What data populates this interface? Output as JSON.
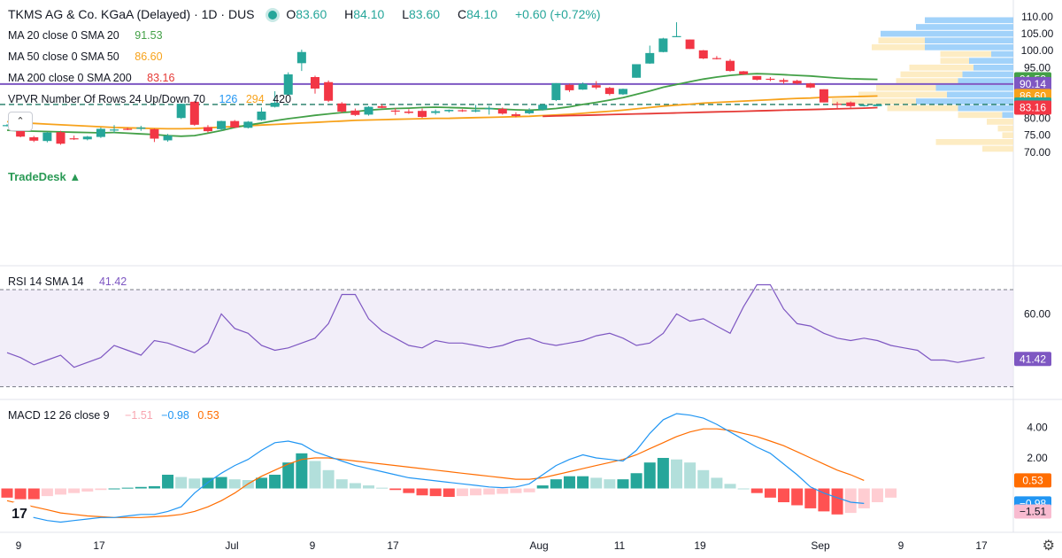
{
  "header": {
    "title": "TKMS AG & Co. KGaA (Delayed) · 1D · DUS",
    "o_label": "O",
    "o": "83.60",
    "h_label": "H",
    "h": "84.10",
    "l_label": "L",
    "l": "83.60",
    "c_label": "C",
    "c": "84.10",
    "change": "+0.60 (+0.72%)"
  },
  "legends": {
    "ma20": {
      "label": "MA 20 close 0 SMA 20",
      "value": "91.53",
      "color": "#43a047"
    },
    "ma50": {
      "label": "MA 50 close 0 SMA 50",
      "value": "86.60",
      "color": "#f7a21b"
    },
    "ma200": {
      "label": "MA 200 close 0 SMA 200",
      "value": "83.16",
      "color": "#e53935"
    },
    "vpvr": {
      "label": "VPVR Number Of Rows 24 Up/Down 70",
      "v1": "126",
      "v2": "294",
      "v3": "420"
    },
    "rsi": {
      "label": "RSI 14 SMA 14",
      "value": "41.42",
      "color": "#7e57c2"
    },
    "macd": {
      "label": "MACD 12 26 close 9",
      "v1": "−1.51",
      "v2": "−0.98",
      "v3": "0.53"
    }
  },
  "watermark": "TradeDesk",
  "tv_logo": "17",
  "icons": {
    "collapse": "chevron-up-icon",
    "settings": "gear-icon"
  },
  "colors": {
    "up": "#26a69a",
    "down": "#f23645",
    "ma20": "#43a047",
    "ma50": "#f7a21b",
    "ma200": "#e53935",
    "hline": "#7e57c2",
    "rsi": "#7e57c2",
    "macd": "#2196f3",
    "signal": "#ff6d00"
  },
  "chart_data": [
    {
      "type": "candlestick",
      "title": "TKMS AG & Co. KGaA (Delayed) · 1D · DUS",
      "ylim": [
        67,
        111
      ],
      "yticks": [
        70,
        75,
        80,
        85,
        90,
        95,
        100,
        105,
        110
      ],
      "xticks": [
        "9",
        "17",
        "Jul",
        "9",
        "17",
        "Aug",
        "11",
        "19",
        "Sep",
        "9",
        "17"
      ],
      "candles": [
        {
          "o": 78.0,
          "h": 78.3,
          "l": 77.6,
          "c": 78.0
        },
        {
          "o": 76.7,
          "h": 77.2,
          "l": 74.4,
          "c": 74.6
        },
        {
          "o": 74.4,
          "h": 74.8,
          "l": 73.0,
          "c": 73.4
        },
        {
          "o": 73.3,
          "h": 76.0,
          "l": 72.9,
          "c": 75.8
        },
        {
          "o": 75.9,
          "h": 76.3,
          "l": 72.2,
          "c": 72.5
        },
        {
          "o": 74.1,
          "h": 74.9,
          "l": 73.6,
          "c": 74.0
        },
        {
          "o": 73.8,
          "h": 74.8,
          "l": 73.5,
          "c": 74.6
        },
        {
          "o": 74.5,
          "h": 77.3,
          "l": 74.2,
          "c": 76.9
        },
        {
          "o": 76.5,
          "h": 78.0,
          "l": 75.7,
          "c": 76.7
        },
        {
          "o": 76.9,
          "h": 77.3,
          "l": 76.5,
          "c": 76.8
        },
        {
          "o": 76.9,
          "h": 77.8,
          "l": 76.3,
          "c": 77.3
        },
        {
          "o": 76.8,
          "h": 77.0,
          "l": 73.0,
          "c": 74.0
        },
        {
          "o": 73.5,
          "h": 75.4,
          "l": 73.1,
          "c": 74.9
        },
        {
          "o": 80.1,
          "h": 84.3,
          "l": 79.8,
          "c": 84.3
        },
        {
          "o": 84.9,
          "h": 85.1,
          "l": 77.8,
          "c": 78.1
        },
        {
          "o": 77.4,
          "h": 78.0,
          "l": 75.8,
          "c": 76.2
        },
        {
          "o": 76.8,
          "h": 79.3,
          "l": 76.3,
          "c": 79.2
        },
        {
          "o": 79.2,
          "h": 79.5,
          "l": 77.1,
          "c": 77.3
        },
        {
          "o": 77.2,
          "h": 79.2,
          "l": 77.0,
          "c": 79.0
        },
        {
          "o": 79.5,
          "h": 83.2,
          "l": 79.3,
          "c": 82.0
        },
        {
          "o": 83.4,
          "h": 88.0,
          "l": 83.2,
          "c": 84.6
        },
        {
          "o": 87.0,
          "h": 93.6,
          "l": 86.8,
          "c": 93.0
        },
        {
          "o": 96.3,
          "h": 100.3,
          "l": 94.0,
          "c": 99.6
        },
        {
          "o": 92.2,
          "h": 92.6,
          "l": 87.3,
          "c": 88.8
        },
        {
          "o": 90.7,
          "h": 91.2,
          "l": 84.8,
          "c": 85.2
        },
        {
          "o": 84.4,
          "h": 84.8,
          "l": 81.6,
          "c": 82.0
        },
        {
          "o": 82.3,
          "h": 82.9,
          "l": 80.7,
          "c": 81.0
        },
        {
          "o": 81.1,
          "h": 83.6,
          "l": 80.8,
          "c": 83.4
        },
        {
          "o": 83.6,
          "h": 84.2,
          "l": 83.0,
          "c": 83.1
        },
        {
          "o": 82.3,
          "h": 83.0,
          "l": 81.0,
          "c": 82.0
        },
        {
          "o": 82.0,
          "h": 82.7,
          "l": 81.3,
          "c": 81.6
        },
        {
          "o": 82.2,
          "h": 82.9,
          "l": 80.1,
          "c": 80.4
        },
        {
          "o": 81.6,
          "h": 82.6,
          "l": 81.1,
          "c": 82.1
        },
        {
          "o": 82.1,
          "h": 82.6,
          "l": 81.7,
          "c": 82.5
        },
        {
          "o": 82.4,
          "h": 82.7,
          "l": 81.9,
          "c": 82.1
        },
        {
          "o": 82.0,
          "h": 84.0,
          "l": 81.8,
          "c": 82.4
        },
        {
          "o": 82.8,
          "h": 83.7,
          "l": 81.1,
          "c": 83.0
        },
        {
          "o": 82.8,
          "h": 83.2,
          "l": 81.1,
          "c": 81.4
        },
        {
          "o": 81.2,
          "h": 81.8,
          "l": 80.3,
          "c": 80.7
        },
        {
          "o": 81.5,
          "h": 83.0,
          "l": 81.2,
          "c": 82.3
        },
        {
          "o": 82.6,
          "h": 84.3,
          "l": 82.3,
          "c": 84.0
        },
        {
          "o": 85.4,
          "h": 90.4,
          "l": 85.1,
          "c": 90.4
        },
        {
          "o": 89.9,
          "h": 90.2,
          "l": 87.8,
          "c": 88.3
        },
        {
          "o": 88.5,
          "h": 90.6,
          "l": 88.4,
          "c": 90.2
        },
        {
          "o": 89.8,
          "h": 91.0,
          "l": 88.6,
          "c": 89.1
        },
        {
          "o": 89.0,
          "h": 89.3,
          "l": 86.8,
          "c": 87.2
        },
        {
          "o": 87.1,
          "h": 88.8,
          "l": 86.9,
          "c": 88.7
        },
        {
          "o": 92.0,
          "h": 96.0,
          "l": 92.0,
          "c": 96.0
        },
        {
          "o": 96.2,
          "h": 101.5,
          "l": 96.1,
          "c": 99.3
        },
        {
          "o": 99.6,
          "h": 103.8,
          "l": 99.5,
          "c": 103.6
        },
        {
          "o": 104.0,
          "h": 108.4,
          "l": 104.0,
          "c": 104.3
        },
        {
          "o": 103.3,
          "h": 103.3,
          "l": 100.5,
          "c": 100.5
        },
        {
          "o": 100.1,
          "h": 100.2,
          "l": 97.5,
          "c": 97.7
        },
        {
          "o": 97.8,
          "h": 98.4,
          "l": 97.4,
          "c": 97.6
        },
        {
          "o": 97.0,
          "h": 97.5,
          "l": 93.8,
          "c": 94.0
        },
        {
          "o": 93.9,
          "h": 94.0,
          "l": 92.8,
          "c": 93.0
        },
        {
          "o": 92.5,
          "h": 92.5,
          "l": 91.2,
          "c": 91.4
        },
        {
          "o": 91.7,
          "h": 92.2,
          "l": 91.0,
          "c": 91.4
        },
        {
          "o": 91.3,
          "h": 91.8,
          "l": 90.2,
          "c": 90.8
        },
        {
          "o": 91.1,
          "h": 91.4,
          "l": 90.0,
          "c": 90.3
        },
        {
          "o": 90.3,
          "h": 90.5,
          "l": 88.9,
          "c": 89.1
        },
        {
          "o": 88.6,
          "h": 88.6,
          "l": 84.7,
          "c": 84.7
        },
        {
          "o": 84.3,
          "h": 84.9,
          "l": 82.8,
          "c": 84.1
        },
        {
          "o": 84.7,
          "h": 85.0,
          "l": 83.1,
          "c": 83.6
        },
        {
          "o": 83.9,
          "h": 84.1,
          "l": 83.5,
          "c": 83.9
        },
        {
          "o": 83.6,
          "h": 84.1,
          "l": 83.6,
          "c": 84.1
        }
      ],
      "sma20": [
        76.5,
        76.3,
        76.2,
        76.1,
        76.0,
        75.9,
        75.8,
        75.7,
        75.8,
        75.6,
        75.4,
        75.2,
        74.9,
        74.7,
        74.9,
        75.6,
        76.4,
        77.3,
        78.0,
        78.6,
        79.3,
        79.9,
        80.4,
        80.9,
        81.3,
        81.7,
        82.0,
        82.4,
        82.7,
        82.9,
        83.0,
        83.2,
        83.3,
        83.2,
        83.1,
        82.9,
        82.9,
        82.7,
        82.5,
        82.4,
        82.6,
        82.9,
        83.4,
        84.1,
        84.7,
        85.4,
        86.1,
        87.1,
        88.1,
        89.2,
        90.0,
        90.8,
        91.6,
        92.2,
        92.7,
        93.0,
        93.2,
        93.1,
        92.9,
        92.7,
        92.5,
        92.2,
        91.9,
        91.7,
        91.6,
        91.53
      ],
      "sma50": [
        79.0,
        78.7,
        78.5,
        78.3,
        78.1,
        77.9,
        77.7,
        77.5,
        77.3,
        77.2,
        77.1,
        77.0,
        76.9,
        76.9,
        77.0,
        77.2,
        77.4,
        77.6,
        77.8,
        78.0,
        78.2,
        78.4,
        78.6,
        78.8,
        79.0,
        79.2,
        79.4,
        79.5,
        79.6,
        79.7,
        79.8,
        79.9,
        80.0,
        80.0,
        80.1,
        80.2,
        80.3,
        80.4,
        80.5,
        80.6,
        80.8,
        81.0,
        81.2,
        81.5,
        81.8,
        82.1,
        82.4,
        82.8,
        83.2,
        83.6,
        83.9,
        84.2,
        84.5,
        84.7,
        84.9,
        85.1,
        85.3,
        85.5,
        85.7,
        85.9,
        86.0,
        86.2,
        86.3,
        86.4,
        86.5,
        86.6
      ],
      "sma200": {
        "from_index": 40,
        "values": [
          80.6,
          80.7,
          80.8,
          80.9,
          81.0,
          81.1,
          81.2,
          81.3,
          81.4,
          81.5,
          81.6,
          81.7,
          81.8,
          81.9,
          82.0,
          82.1,
          82.2,
          82.3,
          82.4,
          82.5,
          82.6,
          82.7,
          82.8,
          82.9,
          83.0,
          83.16
        ]
      },
      "hline": 90.14,
      "last_price_line": 84.1,
      "price_labels": [
        {
          "value": 91.53,
          "text": "91.53",
          "color": "#43a047"
        },
        {
          "value": 90.14,
          "text": "90.14",
          "color": "#7e57c2"
        },
        {
          "value": 86.6,
          "text": "86.60",
          "color": "#f7a21b"
        },
        {
          "value": 84.1,
          "text": "84.10",
          "color": "#26a69a"
        },
        {
          "value": 83.63,
          "text": "83.63",
          "color": "#26a69a"
        },
        {
          "value": 83.16,
          "text": "83.16",
          "color": "#f23645"
        }
      ],
      "volume_profile": [
        {
          "price": 70,
          "up": 0,
          "total": 0.14
        },
        {
          "price": 72,
          "up": 0,
          "total": 0.35
        },
        {
          "price": 74,
          "up": 0,
          "total": 0.05
        },
        {
          "price": 76,
          "up": 0,
          "total": 0.07
        },
        {
          "price": 78,
          "up": 0,
          "total": 0.12
        },
        {
          "price": 80,
          "up": 0.05,
          "total": 0.25
        },
        {
          "price": 82,
          "up": 0.25,
          "total": 0.57
        },
        {
          "price": 84,
          "up": 0.44,
          "total": 0.82
        },
        {
          "price": 86,
          "up": 0.3,
          "total": 0.7
        },
        {
          "price": 88,
          "up": 0.35,
          "total": 0.62
        },
        {
          "price": 90,
          "up": 0.25,
          "total": 0.53
        },
        {
          "price": 92,
          "up": 0.23,
          "total": 0.51
        },
        {
          "price": 94,
          "up": 0.18,
          "total": 0.47
        },
        {
          "price": 96,
          "up": 0.2,
          "total": 0.33
        },
        {
          "price": 98,
          "up": 0.1,
          "total": 0.33
        },
        {
          "price": 100,
          "up": 0.4,
          "total": 0.64
        },
        {
          "price": 102,
          "up": 0.4,
          "total": 0.61
        },
        {
          "price": 104,
          "up": 0.6,
          "total": 0.6
        },
        {
          "price": 106,
          "up": 0.44,
          "total": 0.44
        },
        {
          "price": 108,
          "up": 0.4,
          "total": 0.4
        }
      ]
    },
    {
      "type": "line",
      "title": "RSI 14 SMA 14",
      "ylim": [
        25,
        75
      ],
      "yticks": [
        60
      ],
      "band": [
        30,
        70
      ],
      "values": [
        44,
        42,
        39,
        41,
        43,
        38,
        40,
        42,
        47,
        45,
        43,
        49,
        48,
        46,
        44,
        48,
        60,
        54,
        52,
        47,
        45,
        46,
        48,
        50,
        56,
        68,
        68,
        58,
        53,
        50,
        47,
        46,
        49,
        48,
        48,
        47,
        46,
        47,
        49,
        50,
        48,
        47,
        48,
        49,
        51,
        52,
        50,
        47,
        48,
        52,
        60,
        57,
        58,
        55,
        52,
        63,
        72,
        72,
        62,
        56,
        55,
        52,
        50,
        49,
        50,
        49,
        47,
        46,
        45,
        41,
        41,
        40,
        41,
        42
      ],
      "last_label": {
        "value": 41.42,
        "text": "41.42"
      }
    },
    {
      "type": "bar+line",
      "title": "MACD 12 26 close 9",
      "ylim": [
        -3.0,
        5.2
      ],
      "yticks": [
        4.0,
        2.0
      ],
      "histogram": [
        -0.6,
        -0.7,
        -0.7,
        -0.5,
        -0.4,
        -0.3,
        -0.2,
        -0.1,
        0.0,
        0.05,
        0.1,
        0.15,
        0.9,
        0.75,
        0.65,
        0.7,
        0.75,
        0.6,
        0.55,
        0.7,
        0.9,
        1.7,
        2.3,
        1.8,
        1.2,
        0.6,
        0.35,
        0.2,
        0.05,
        -0.1,
        -0.3,
        -0.45,
        -0.5,
        -0.55,
        -0.5,
        -0.45,
        -0.4,
        -0.35,
        -0.3,
        -0.25,
        0.2,
        0.6,
        0.8,
        0.8,
        0.7,
        0.6,
        0.6,
        1.0,
        1.7,
        2.0,
        1.9,
        1.7,
        1.2,
        0.7,
        0.3,
        0.0,
        -0.3,
        -0.6,
        -0.9,
        -1.1,
        -1.3,
        -1.5,
        -1.7,
        -1.6,
        -1.3,
        -0.9,
        -0.6
      ],
      "macd": [
        -1.4,
        -1.7,
        -1.9,
        -2.1,
        -2.2,
        -2.1,
        -2.0,
        -1.9,
        -1.9,
        -1.8,
        -1.7,
        -1.7,
        -1.5,
        -1.2,
        -0.3,
        0.4,
        1.0,
        1.5,
        1.9,
        2.5,
        3.0,
        3.1,
        2.9,
        2.4,
        2.1,
        1.8,
        1.5,
        1.3,
        1.1,
        0.9,
        0.7,
        0.6,
        0.5,
        0.4,
        0.3,
        0.2,
        0.1,
        0.05,
        0.1,
        0.3,
        0.9,
        1.5,
        1.9,
        2.2,
        2.0,
        1.9,
        1.8,
        2.5,
        3.6,
        4.5,
        4.9,
        4.8,
        4.6,
        4.2,
        3.7,
        3.2,
        2.7,
        2.3,
        1.6,
        0.9,
        0.1,
        -0.3,
        -0.6,
        -0.9,
        -0.98
      ],
      "signal": [
        -0.8,
        -1.0,
        -1.2,
        -1.4,
        -1.6,
        -1.7,
        -1.8,
        -1.85,
        -1.9,
        -1.9,
        -1.9,
        -1.85,
        -1.8,
        -1.7,
        -1.5,
        -1.2,
        -0.8,
        -0.3,
        0.3,
        0.8,
        1.2,
        1.6,
        1.9,
        2.0,
        2.0,
        1.9,
        1.8,
        1.7,
        1.6,
        1.5,
        1.4,
        1.3,
        1.2,
        1.1,
        1.0,
        0.9,
        0.8,
        0.7,
        0.6,
        0.6,
        0.7,
        0.9,
        1.1,
        1.3,
        1.5,
        1.7,
        1.9,
        2.2,
        2.6,
        3.0,
        3.4,
        3.7,
        3.9,
        3.9,
        3.8,
        3.6,
        3.4,
        3.1,
        2.8,
        2.4,
        2.0,
        1.6,
        1.2,
        0.9,
        0.53
      ],
      "last_labels": [
        {
          "value": 0.53,
          "text": "0.53",
          "color": "#ff6d00"
        },
        {
          "value": -0.98,
          "text": "−0.98",
          "color": "#2196f3"
        },
        {
          "value": -1.51,
          "text": "−1.51",
          "color": "#f8bbd0"
        }
      ]
    }
  ]
}
